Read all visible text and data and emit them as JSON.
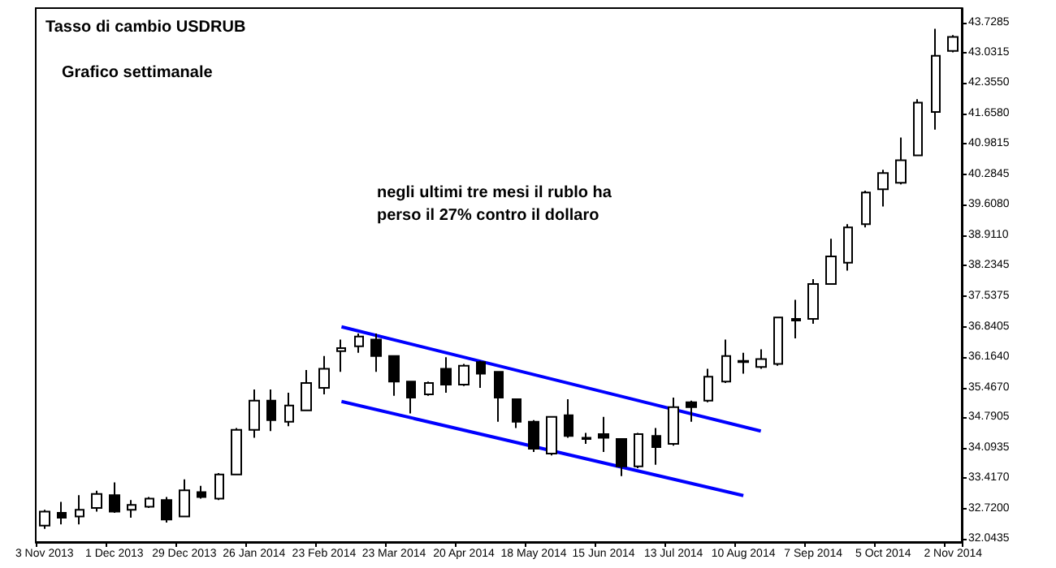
{
  "chart_data": {
    "type": "candlestick",
    "title": "Tasso di cambio USDRUB",
    "subtitle": "Grafico settimanale",
    "annotations": [
      "negli ultimi tre mesi il rublo ha\nperso il 27% contro il dollaro"
    ],
    "categories": [
      "3 Nov 2013",
      null,
      null,
      null,
      "1 Dec 2013",
      null,
      null,
      null,
      "29 Dec 2013",
      null,
      null,
      null,
      "26 Jan 2014",
      null,
      null,
      null,
      "23 Feb 2014",
      null,
      null,
      null,
      "23 Mar 2014",
      null,
      null,
      null,
      "20 Apr 2014",
      null,
      null,
      null,
      "18 May 2014",
      null,
      null,
      null,
      "15 Jun 2014",
      null,
      null,
      null,
      "13 Jul 2014",
      null,
      null,
      null,
      "10 Aug 2014",
      null,
      null,
      null,
      "7 Sep 2014",
      null,
      null,
      null,
      "5 Oct 2014",
      null,
      null,
      null,
      "2 Nov 2014"
    ],
    "ohlc": [
      [
        32.34,
        32.7,
        32.27,
        32.66
      ],
      [
        32.63,
        32.88,
        32.37,
        32.52
      ],
      [
        32.55,
        33.03,
        32.37,
        32.7
      ],
      [
        32.74,
        33.13,
        32.66,
        33.06
      ],
      [
        33.03,
        33.32,
        32.63,
        32.66
      ],
      [
        32.7,
        32.92,
        32.52,
        32.81
      ],
      [
        32.77,
        32.99,
        32.74,
        32.95
      ],
      [
        32.92,
        32.99,
        32.41,
        32.48
      ],
      [
        32.55,
        33.39,
        32.55,
        33.14
      ],
      [
        33.1,
        33.24,
        32.95,
        32.99
      ],
      [
        32.95,
        33.53,
        32.92,
        33.5
      ],
      [
        33.5,
        34.55,
        33.5,
        34.51
      ],
      [
        34.51,
        35.42,
        34.33,
        35.17
      ],
      [
        35.17,
        35.42,
        34.48,
        34.73
      ],
      [
        34.69,
        35.35,
        34.59,
        35.06
      ],
      [
        34.95,
        35.86,
        34.95,
        35.57
      ],
      [
        35.46,
        36.18,
        35.31,
        35.89
      ],
      [
        36.29,
        36.55,
        35.82,
        36.36
      ],
      [
        36.4,
        36.69,
        36.25,
        36.62
      ],
      [
        36.55,
        36.69,
        35.82,
        36.18
      ],
      [
        36.18,
        36.18,
        35.28,
        35.6
      ],
      [
        35.6,
        35.6,
        34.88,
        35.24
      ],
      [
        35.31,
        35.6,
        35.28,
        35.57
      ],
      [
        35.89,
        36.15,
        35.35,
        35.53
      ],
      [
        35.53,
        36.0,
        35.5,
        35.96
      ],
      [
        36.04,
        36.07,
        35.46,
        35.78
      ],
      [
        35.82,
        35.82,
        34.69,
        35.24
      ],
      [
        35.2,
        35.2,
        34.55,
        34.69
      ],
      [
        34.69,
        34.73,
        34.01,
        34.08
      ],
      [
        33.97,
        34.8,
        33.93,
        34.8
      ],
      [
        34.84,
        35.2,
        34.33,
        34.37
      ],
      [
        34.3,
        34.44,
        34.19,
        34.33
      ],
      [
        34.41,
        34.8,
        34.01,
        34.33
      ],
      [
        34.3,
        34.3,
        33.46,
        33.68
      ],
      [
        33.68,
        34.44,
        33.64,
        34.41
      ],
      [
        34.37,
        34.55,
        33.72,
        34.12
      ],
      [
        34.19,
        35.24,
        34.15,
        35.02
      ],
      [
        35.13,
        35.17,
        34.69,
        35.02
      ],
      [
        35.17,
        35.89,
        35.13,
        35.71
      ],
      [
        35.6,
        36.55,
        35.57,
        36.18
      ],
      [
        36.04,
        36.25,
        35.78,
        36.07
      ],
      [
        35.93,
        36.33,
        35.89,
        36.11
      ],
      [
        36.0,
        37.05,
        35.96,
        37.05
      ],
      [
        37.02,
        37.45,
        36.58,
        36.98
      ],
      [
        37.02,
        37.92,
        36.91,
        37.81
      ],
      [
        37.81,
        38.83,
        37.81,
        38.43
      ],
      [
        38.29,
        39.16,
        38.11,
        39.09
      ],
      [
        39.16,
        39.92,
        39.09,
        39.88
      ],
      [
        39.95,
        40.39,
        39.56,
        40.32
      ],
      [
        40.1,
        41.12,
        40.06,
        40.61
      ],
      [
        40.72,
        41.99,
        40.72,
        41.91
      ],
      [
        41.7,
        43.58,
        41.3,
        42.97
      ],
      [
        43.08,
        43.44,
        43.05,
        43.4
      ]
    ],
    "series": [
      {
        "type": "line",
        "color": "#0000ff",
        "values": [
          null,
          null,
          null,
          null,
          null,
          null,
          null,
          null,
          null,
          null,
          null,
          null,
          null,
          null,
          null,
          null,
          null,
          36.84,
          null,
          null,
          null,
          null,
          null,
          null,
          null,
          null,
          null,
          null,
          null,
          null,
          null,
          null,
          null,
          null,
          null,
          null,
          null,
          null,
          null,
          null,
          null,
          34.48,
          null,
          null,
          null,
          null,
          null,
          null,
          null,
          null,
          null,
          null,
          null
        ]
      },
      {
        "type": "line",
        "color": "#0000ff",
        "values": [
          null,
          null,
          null,
          null,
          null,
          null,
          null,
          null,
          null,
          null,
          null,
          null,
          null,
          null,
          null,
          null,
          null,
          35.15,
          null,
          null,
          null,
          null,
          null,
          null,
          null,
          null,
          null,
          null,
          null,
          null,
          null,
          null,
          null,
          null,
          null,
          null,
          null,
          null,
          null,
          null,
          33.02,
          null,
          null,
          null,
          null,
          null,
          null,
          null,
          null,
          null,
          null,
          null,
          null
        ]
      }
    ],
    "ylim": [
      31.97,
      44.05
    ],
    "yticks": [
      32.0435,
      {
        "value": 32.72,
        "label": "32.7200"
      },
      {
        "value": 33.417,
        "label": "33.4170"
      },
      34.0935,
      34.7905,
      {
        "value": 35.467,
        "label": "35.4670"
      },
      {
        "value": 36.164,
        "label": "36.1640"
      },
      36.8405,
      37.5375,
      38.2345,
      {
        "value": 38.911,
        "label": "38.9110"
      },
      {
        "value": 39.608,
        "label": "39.6080"
      },
      40.2845,
      40.9815,
      {
        "value": 41.658,
        "label": "41.6580"
      },
      {
        "value": 42.355,
        "label": "42.3550"
      },
      43.0315,
      43.7285
    ],
    "grid": false
  }
}
